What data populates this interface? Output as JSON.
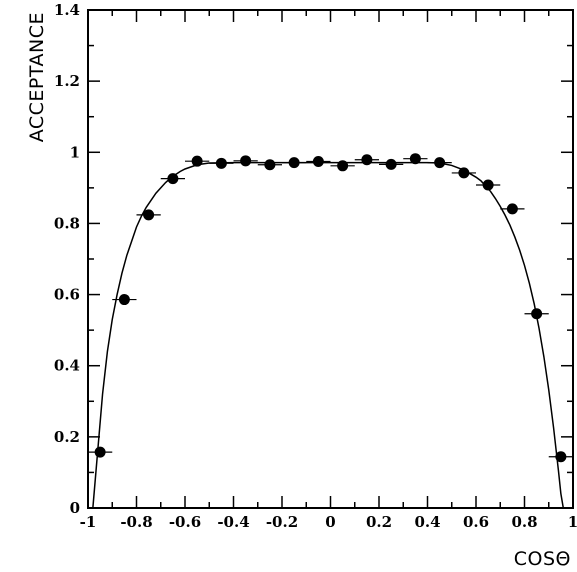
{
  "chart_data": {
    "type": "scatter",
    "title": "",
    "xlabel": "COSΘ",
    "ylabel": "ACCEPTANCE",
    "xlim": [
      -1,
      1
    ],
    "ylim": [
      0,
      1.4
    ],
    "x_ticks": [
      -1,
      -0.8,
      -0.6,
      -0.4,
      -0.2,
      0,
      0.2,
      0.4,
      0.6,
      0.8,
      1
    ],
    "x_tick_labels": [
      "-1",
      "-0.8",
      "-0.6",
      "-0.4",
      "-0.2",
      "0",
      "0.2",
      "0.4",
      "0.6",
      "0.8",
      "1"
    ],
    "y_ticks": [
      0,
      0.2,
      0.4,
      0.6,
      0.8,
      1,
      1.2,
      1.4
    ],
    "y_tick_labels": [
      "0",
      "0.2",
      "0.4",
      "0.6",
      "0.8",
      "1",
      "1.2",
      "1.4"
    ],
    "grid": false,
    "legend": "none",
    "points": {
      "x": [
        -0.95,
        -0.85,
        -0.75,
        -0.65,
        -0.55,
        -0.45,
        -0.35,
        -0.25,
        -0.15,
        -0.05,
        0.05,
        0.15,
        0.25,
        0.35,
        0.45,
        0.55,
        0.65,
        0.75,
        0.85,
        0.95
      ],
      "y": [
        0.157,
        0.586,
        0.824,
        0.926,
        0.975,
        0.969,
        0.976,
        0.965,
        0.971,
        0.974,
        0.962,
        0.979,
        0.966,
        0.982,
        0.971,
        0.942,
        0.908,
        0.841,
        0.546,
        0.144
      ],
      "x_error": 0.05
    },
    "fit_curve": {
      "x": [
        -0.98,
        -0.96,
        -0.94,
        -0.92,
        -0.9,
        -0.88,
        -0.86,
        -0.84,
        -0.82,
        -0.8,
        -0.78,
        -0.76,
        -0.74,
        -0.72,
        -0.7,
        -0.68,
        -0.66,
        -0.64,
        -0.62,
        -0.6,
        -0.55,
        -0.5,
        -0.4,
        -0.3,
        -0.2,
        -0.1,
        0,
        0.1,
        0.2,
        0.3,
        0.4,
        0.45,
        0.5,
        0.55,
        0.6,
        0.62,
        0.64,
        0.66,
        0.68,
        0.7,
        0.72,
        0.74,
        0.76,
        0.78,
        0.8,
        0.82,
        0.84,
        0.86,
        0.88,
        0.9,
        0.92,
        0.94,
        0.95,
        0.96,
        0.97,
        0.98
      ],
      "y": [
        0.0,
        0.16,
        0.32,
        0.44,
        0.53,
        0.6,
        0.66,
        0.71,
        0.75,
        0.79,
        0.82,
        0.845,
        0.865,
        0.885,
        0.9,
        0.915,
        0.927,
        0.937,
        0.946,
        0.953,
        0.965,
        0.97,
        0.971,
        0.971,
        0.971,
        0.971,
        0.971,
        0.971,
        0.971,
        0.971,
        0.971,
        0.97,
        0.963,
        0.95,
        0.93,
        0.92,
        0.905,
        0.89,
        0.87,
        0.848,
        0.823,
        0.795,
        0.762,
        0.725,
        0.682,
        0.632,
        0.574,
        0.505,
        0.425,
        0.332,
        0.225,
        0.105,
        0.04,
        0.0,
        0.0,
        0.0
      ]
    }
  }
}
